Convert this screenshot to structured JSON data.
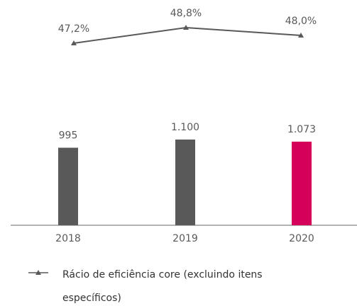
{
  "chart_data": {
    "type": "bar-line",
    "categories": [
      "2018",
      "2019",
      "2020"
    ],
    "series": [
      {
        "type": "bar",
        "colors": [
          "#595959",
          "#595959",
          "#d4005a"
        ],
        "values": [
          995,
          1100,
          1073
        ],
        "value_labels": [
          "995",
          "1.100",
          "1.073"
        ]
      },
      {
        "type": "line",
        "name": "Rácio de eficiência core (excluindo itens específicos)",
        "color": "#595959",
        "values": [
          47.2,
          48.8,
          48.0
        ],
        "value_labels": [
          "47,2%",
          "48,8%",
          "48,0%"
        ]
      }
    ]
  }
}
